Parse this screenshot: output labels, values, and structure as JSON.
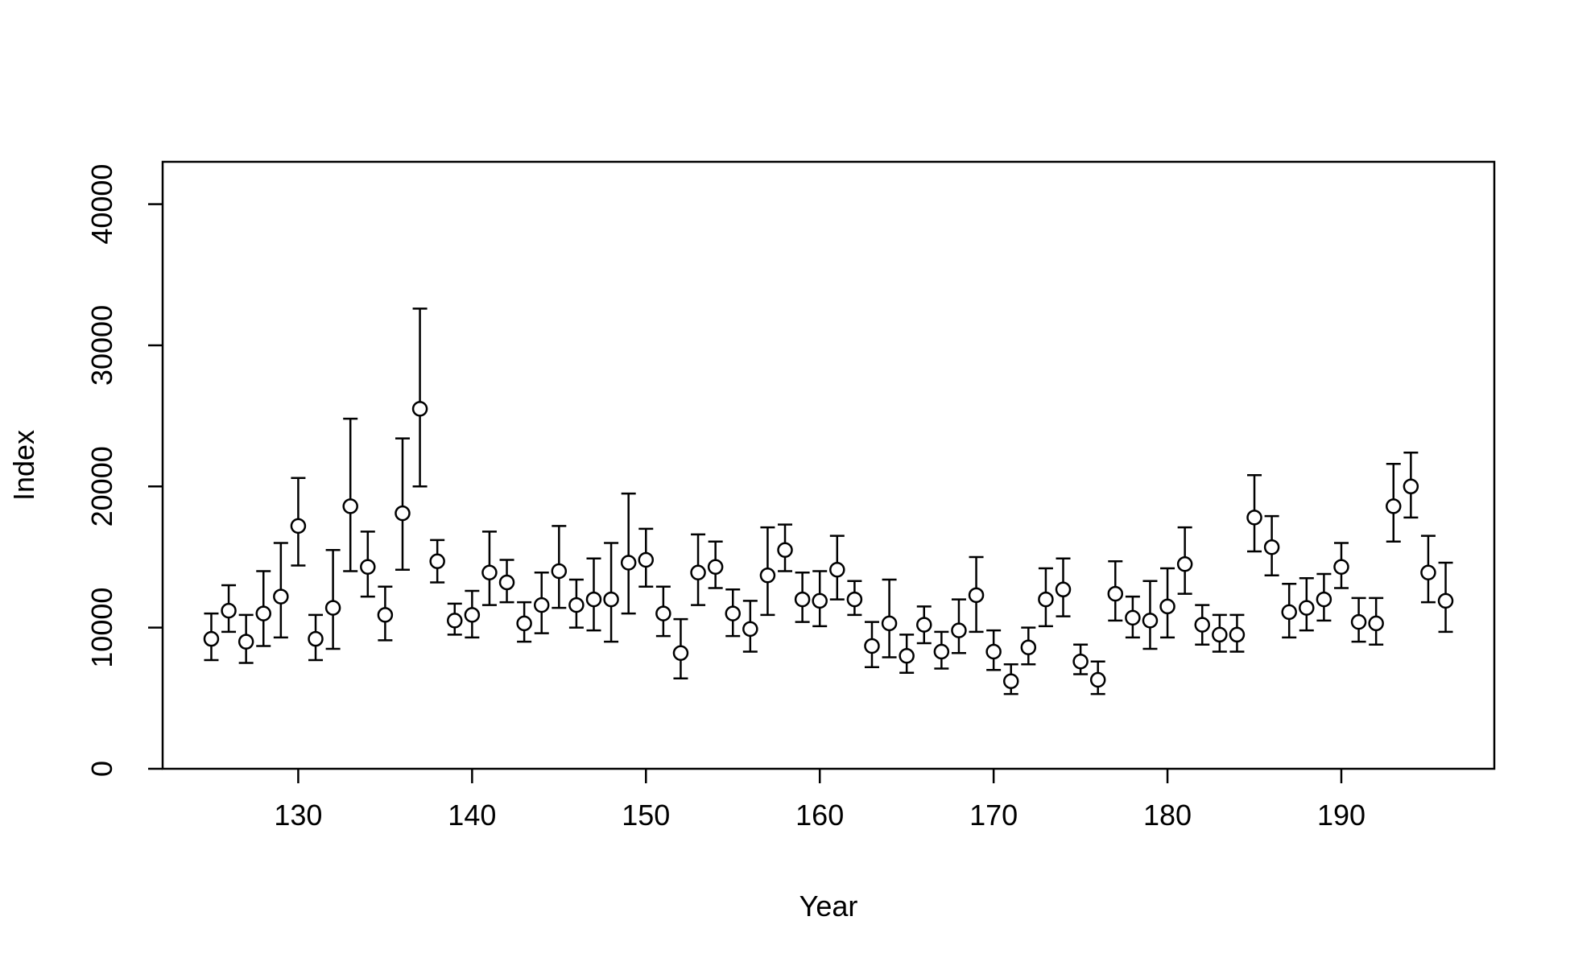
{
  "chart_data": {
    "type": "scatter",
    "title": "",
    "xlabel": "Year",
    "ylabel": "Index",
    "xlim": [
      122.2,
      198.8
    ],
    "ylim": [
      0,
      43000
    ],
    "x_ticks": [
      130,
      140,
      150,
      160,
      170,
      180,
      190
    ],
    "y_ticks": [
      0,
      10000,
      20000,
      30000,
      40000
    ],
    "grid": false,
    "legend": "none",
    "point_style": "open-circle",
    "error_bars": true,
    "series": [
      {
        "x": [
          125,
          126,
          127,
          128,
          129,
          130,
          131,
          132,
          133,
          134,
          135,
          136,
          137,
          138,
          139,
          140,
          141,
          142,
          143,
          144,
          145,
          146,
          147,
          148,
          149,
          150,
          151,
          152,
          153,
          154,
          155,
          156,
          157,
          158,
          159,
          160,
          161,
          162,
          163,
          164,
          165,
          166,
          167,
          168,
          169,
          170,
          171,
          172,
          173,
          174,
          175,
          176,
          177,
          178,
          179,
          180,
          181,
          182,
          183,
          184,
          185,
          186,
          187,
          188,
          189,
          190,
          191,
          192,
          193,
          194,
          195,
          196
        ],
        "y": [
          9200,
          11200,
          9000,
          11000,
          12200,
          17200,
          9200,
          11400,
          18600,
          14300,
          10900,
          18100,
          25500,
          14700,
          10500,
          10900,
          13900,
          13200,
          10300,
          11600,
          14000,
          11600,
          12000,
          12000,
          14600,
          14800,
          11000,
          8200,
          13900,
          14300,
          11000,
          9900,
          13700,
          15500,
          12000,
          11900,
          14100,
          12000,
          8700,
          10300,
          8000,
          10200,
          8300,
          9800,
          12300,
          8300,
          6200,
          8600,
          12000,
          12700,
          7600,
          6300,
          12400,
          10700,
          10500,
          11500,
          14500,
          10200,
          9500,
          9500,
          17800,
          15700,
          11100,
          11400,
          12000,
          14300,
          10400,
          10300,
          18600,
          20000,
          13900,
          11900
        ],
        "lower": [
          7700,
          9700,
          7500,
          8700,
          9300,
          14400,
          7700,
          8500,
          14000,
          12200,
          9100,
          14100,
          20000,
          13200,
          9500,
          9300,
          11600,
          11800,
          9000,
          9600,
          11400,
          10000,
          9800,
          9000,
          11000,
          12900,
          9400,
          6400,
          11600,
          12800,
          9400,
          8300,
          10900,
          14000,
          10400,
          10100,
          12000,
          10900,
          7200,
          7900,
          6800,
          8900,
          7100,
          8200,
          9700,
          7000,
          5300,
          7400,
          10100,
          10800,
          6700,
          5300,
          10500,
          9300,
          8500,
          9300,
          12400,
          8800,
          8300,
          8300,
          15400,
          13700,
          9300,
          9800,
          10500,
          12800,
          9000,
          8800,
          16100,
          17800,
          11800,
          9700
        ],
        "upper": [
          11000,
          13000,
          10900,
          14000,
          16000,
          20600,
          10900,
          15500,
          24800,
          16800,
          12900,
          23400,
          32600,
          16200,
          11700,
          12600,
          16800,
          14800,
          11800,
          13900,
          17200,
          13400,
          14900,
          16000,
          19500,
          17000,
          12900,
          10600,
          16600,
          16100,
          12700,
          11900,
          17100,
          17300,
          13900,
          14000,
          16500,
          13300,
          10400,
          13400,
          9500,
          11500,
          9700,
          12000,
          15000,
          9800,
          7400,
          10000,
          14200,
          14900,
          8800,
          7600,
          14700,
          12200,
          13300,
          14200,
          17100,
          11600,
          10900,
          10900,
          20800,
          17900,
          13100,
          13500,
          13800,
          16000,
          12100,
          12100,
          21600,
          22400,
          16500,
          14600
        ]
      }
    ]
  }
}
